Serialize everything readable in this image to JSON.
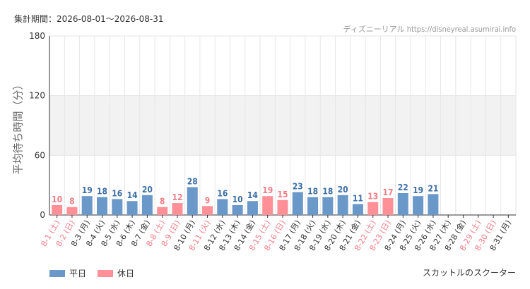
{
  "header": {
    "period": "集計期間：2026-08-01～2026-08-31",
    "credit": "ディズニーリアル https://disneyreal.asumirai.info"
  },
  "chart_data": {
    "type": "bar",
    "ylabel": "平均待ち時間（分）",
    "ylim": [
      0,
      180
    ],
    "yticks": [
      0,
      60,
      120,
      180
    ],
    "grid": true,
    "legend_placement": "bottom-left",
    "categories": [
      "8-1 (土)",
      "8-2 (日)",
      "8-3 (月)",
      "8-4 (火)",
      "8-5 (水)",
      "8-6 (木)",
      "8-7 (金)",
      "8-8 (土)",
      "8-9 (日)",
      "8-10 (月)",
      "8-11 (火)",
      "8-12 (水)",
      "8-13 (木)",
      "8-14 (金)",
      "8-15 (土)",
      "8-16 (日)",
      "8-17 (月)",
      "8-18 (火)",
      "8-19 (水)",
      "8-20 (木)",
      "8-21 (金)",
      "8-22 (土)",
      "8-23 (日)",
      "8-24 (月)",
      "8-25 (火)",
      "8-26 (水)",
      "8-27 (木)",
      "8-28 (金)",
      "8-29 (土)",
      "8-30 (日)",
      "8-31 (月)"
    ],
    "values": [
      10,
      8,
      19,
      18,
      16,
      14,
      20,
      8,
      12,
      28,
      9,
      16,
      10,
      14,
      19,
      15,
      23,
      18,
      18,
      20,
      11,
      13,
      17,
      22,
      19,
      21,
      null,
      null,
      null,
      null,
      null
    ],
    "day_type": [
      "holiday",
      "holiday",
      "weekday",
      "weekday",
      "weekday",
      "weekday",
      "weekday",
      "holiday",
      "holiday",
      "weekday",
      "holiday",
      "weekday",
      "weekday",
      "weekday",
      "holiday",
      "holiday",
      "weekday",
      "weekday",
      "weekday",
      "weekday",
      "weekday",
      "holiday",
      "holiday",
      "weekday",
      "weekday",
      "weekday",
      "weekday",
      "weekday",
      "holiday",
      "holiday",
      "weekday"
    ],
    "series": [
      {
        "name": "平日",
        "key": "weekday",
        "color": "#6a98c8",
        "label_color": "#3d6fa6"
      },
      {
        "name": "休日",
        "key": "holiday",
        "color": "#ff9098",
        "label_color": "#f27c86"
      }
    ],
    "series_title": "スカットルのスクーター"
  },
  "colors": {
    "band": "#f2f2f2",
    "grid": "#e6e6e6",
    "axis": "#333333"
  }
}
